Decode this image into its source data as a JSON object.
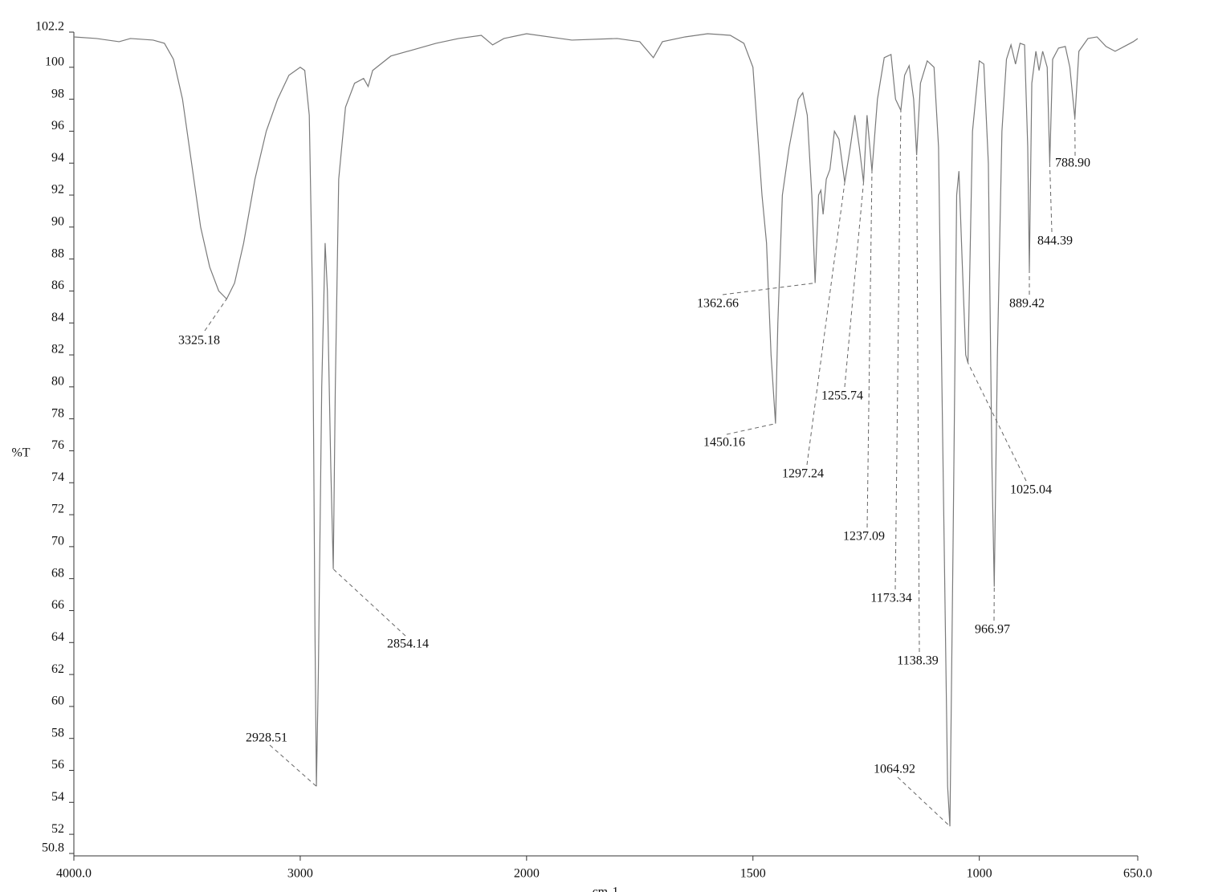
{
  "chart_data": {
    "type": "line",
    "xlabel": "cm-1",
    "ylabel": "%T",
    "xlim": [
      4000,
      650
    ],
    "x_scale_change": 2000,
    "x_scale_factor": 2,
    "xticks": [
      {
        "value": 4000,
        "label": "4000.0"
      },
      3000,
      2000,
      1500,
      1000,
      {
        "value": 650,
        "label": "650.0"
      }
    ],
    "ylim": [
      50.8,
      102.2
    ],
    "yticks": [
      50.8,
      52,
      54,
      56,
      58,
      60,
      62,
      64,
      66,
      68,
      70,
      72,
      74,
      76,
      78,
      80,
      82,
      84,
      86,
      88,
      90,
      92,
      94,
      96,
      98,
      100,
      102.2
    ],
    "x": [
      4000,
      3900,
      3800,
      3750,
      3650,
      3600,
      3560,
      3520,
      3480,
      3440,
      3400,
      3360,
      3325,
      3290,
      3250,
      3200,
      3150,
      3100,
      3050,
      3000,
      2980,
      2960,
      2945,
      2935,
      2928.5,
      2920,
      2905,
      2890,
      2880,
      2865,
      2854,
      2845,
      2830,
      2800,
      2760,
      2720,
      2700,
      2680,
      2600,
      2500,
      2400,
      2300,
      2200,
      2150,
      2100,
      2000,
      1900,
      1800,
      1750,
      1720,
      1700,
      1650,
      1600,
      1550,
      1520,
      1500,
      1490,
      1480,
      1470,
      1460,
      1450.16,
      1445,
      1435,
      1420,
      1400,
      1390,
      1380,
      1370,
      1362.66,
      1355,
      1350,
      1345,
      1338,
      1330,
      1320,
      1310,
      1297.24,
      1285,
      1275,
      1265,
      1255.74,
      1248,
      1237.09,
      1225,
      1210,
      1195,
      1185,
      1173.34,
      1165,
      1155,
      1145,
      1138.39,
      1130,
      1115,
      1100,
      1090,
      1080,
      1070,
      1064.92,
      1058,
      1050,
      1045,
      1038,
      1030,
      1025.04,
      1015,
      1000,
      990,
      980,
      972,
      966.97,
      960,
      950,
      940,
      930,
      920,
      910,
      900,
      893,
      889.42,
      884,
      875,
      868,
      860,
      850,
      844.39,
      838,
      825,
      810,
      800,
      788.9,
      780,
      760,
      740,
      720,
      700,
      680,
      660,
      650
    ],
    "series": [
      {
        "color": "#7a7a7a",
        "values": [
          101.9,
          101.8,
          101.6,
          101.8,
          101.7,
          101.5,
          100.5,
          98,
          94,
          90,
          87.5,
          86,
          85.5,
          86.5,
          89,
          93,
          96,
          98,
          99.5,
          100,
          99.8,
          97,
          85,
          65,
          55,
          62,
          80,
          89,
          86,
          75,
          68.6,
          80,
          93,
          97.5,
          99,
          99.3,
          98.8,
          99.8,
          100.7,
          101.1,
          101.5,
          101.8,
          102,
          101.4,
          101.8,
          102.1,
          101.7,
          101.8,
          101.6,
          100.6,
          101.6,
          101.9,
          102.1,
          102,
          101.5,
          100,
          96,
          92,
          89,
          82,
          77.7,
          84,
          92,
          95,
          98,
          98.4,
          97,
          92,
          86.5,
          92,
          92.3,
          90.8,
          93,
          93.6,
          96,
          95.5,
          92.8,
          95,
          97,
          95,
          92.8,
          97,
          93.5,
          98,
          100.6,
          100.8,
          98,
          97.3,
          99.5,
          100.1,
          98,
          94.5,
          99,
          100.4,
          100,
          95,
          75,
          55,
          52.5,
          70,
          92,
          93.5,
          88,
          82,
          81.5,
          96,
          100.4,
          100.2,
          94,
          75,
          67.5,
          82,
          96,
          100.5,
          101.4,
          100.2,
          101.5,
          101.4,
          95,
          87.3,
          99,
          101,
          99.8,
          101,
          100,
          94,
          100.5,
          101.2,
          101.3,
          100,
          96.8,
          101,
          101.8,
          101.9,
          101.3,
          101,
          101.3,
          101.6,
          101.8
        ]
      }
    ],
    "annotations": [
      {
        "text": "3325.18",
        "x": 3325.18,
        "y": 85.5
      },
      {
        "text": "2928.51",
        "x": 2928.51,
        "y": 55
      },
      {
        "text": "2854.14",
        "x": 2854.14,
        "y": 68.6
      },
      {
        "text": "1450.16",
        "x": 1450.16,
        "y": 77.7
      },
      {
        "text": "1362.66",
        "x": 1362.66,
        "y": 86.5
      },
      {
        "text": "1297.24",
        "x": 1297.24,
        "y": 92.8
      },
      {
        "text": "1255.74",
        "x": 1255.74,
        "y": 92.8
      },
      {
        "text": "1237.09",
        "x": 1237.09,
        "y": 93.5
      },
      {
        "text": "1173.34",
        "x": 1173.34,
        "y": 97.3
      },
      {
        "text": "1138.39",
        "x": 1138.39,
        "y": 94.5
      },
      {
        "text": "1064.92",
        "x": 1064.92,
        "y": 52.5
      },
      {
        "text": "1025.04",
        "x": 1025.04,
        "y": 81.5
      },
      {
        "text": "966.97",
        "x": 966.97,
        "y": 67.5
      },
      {
        "text": "889.42",
        "x": 889.42,
        "y": 87.3
      },
      {
        "text": "844.39",
        "x": 844.39,
        "y": 94
      },
      {
        "text": "788.90",
        "x": 788.9,
        "y": 96.8
      }
    ]
  }
}
